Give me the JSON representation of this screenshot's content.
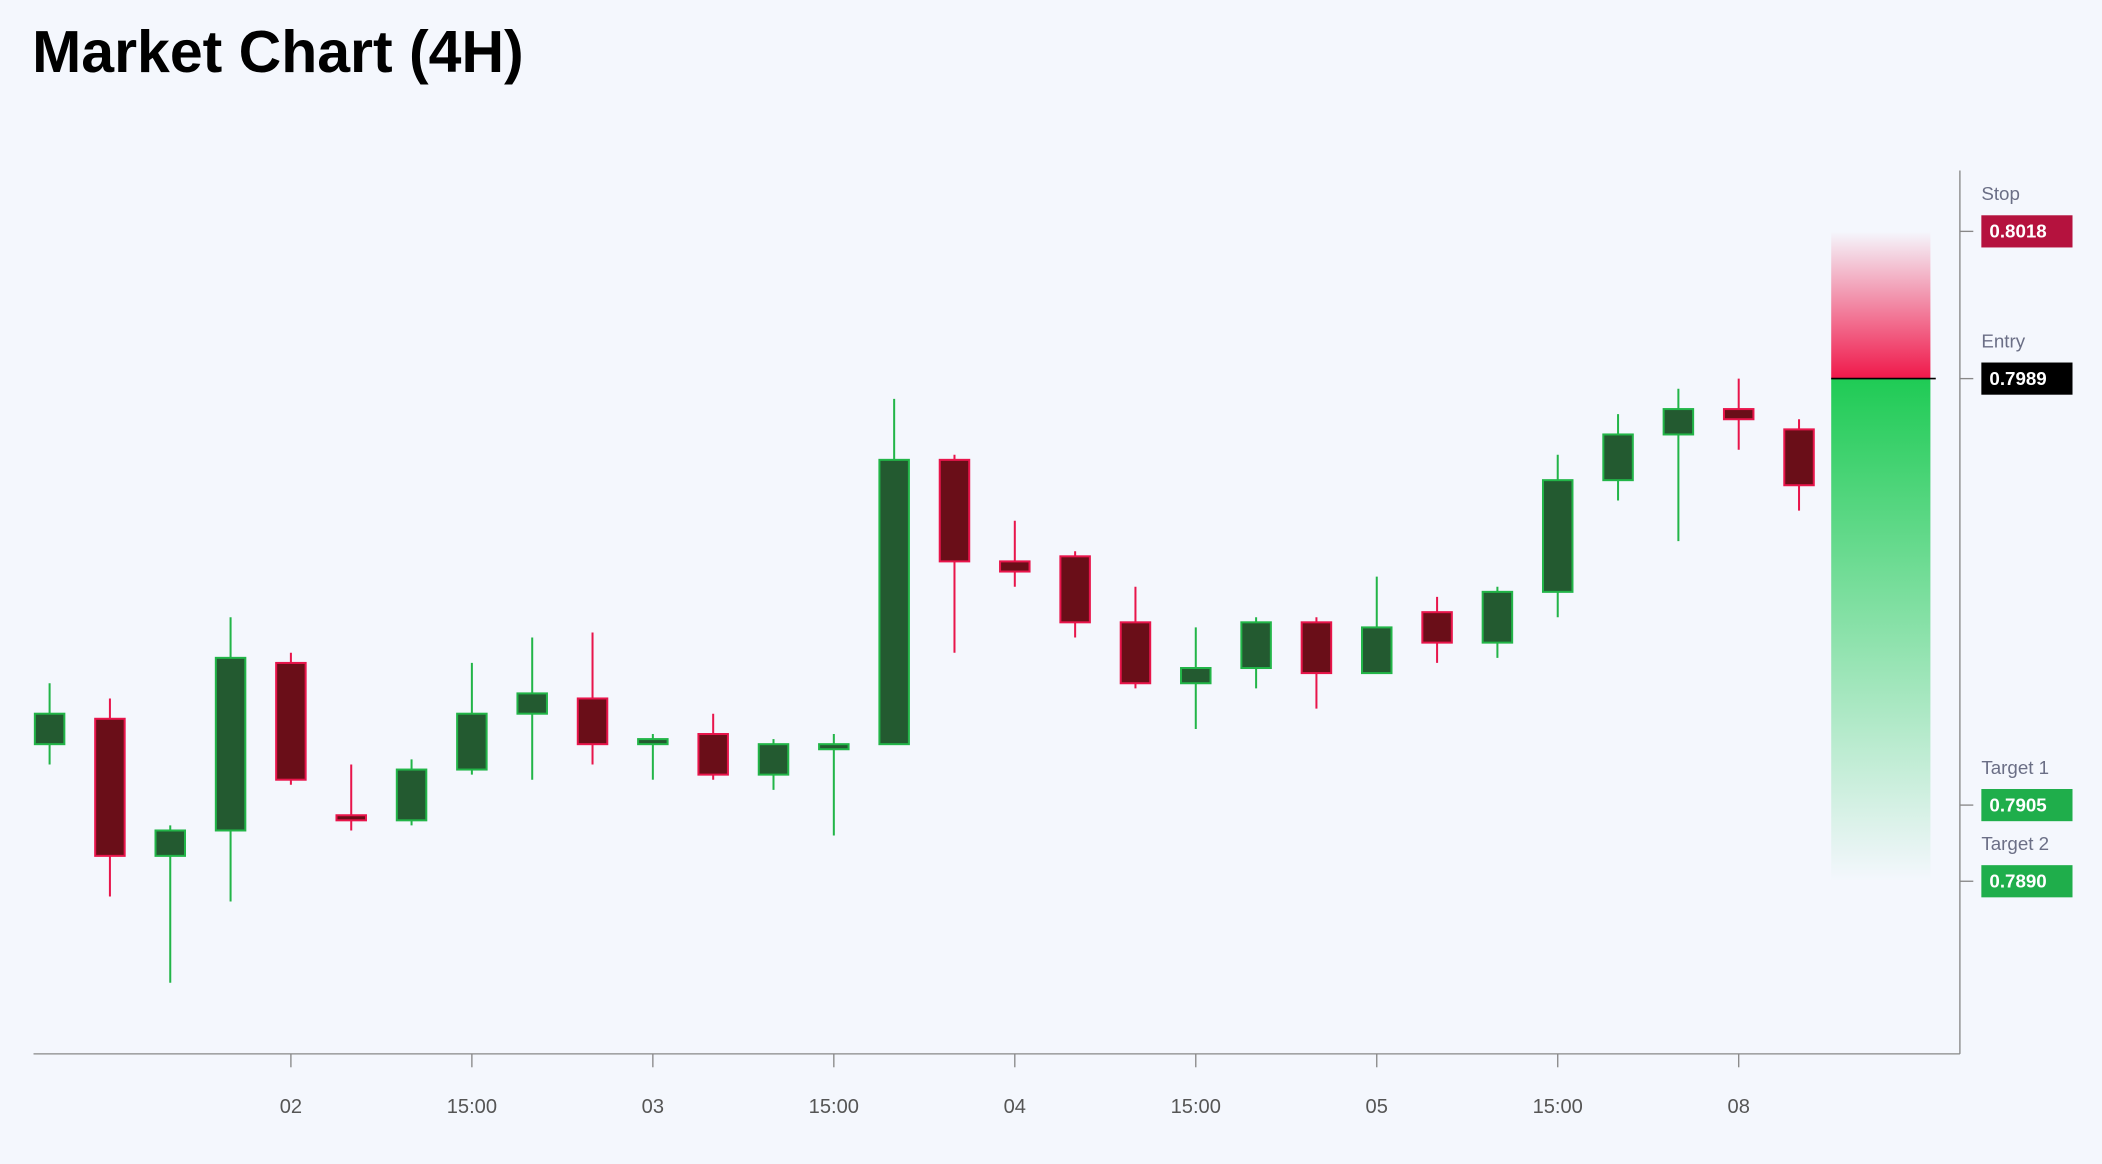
{
  "chart_data": {
    "type": "candlestick",
    "title": "Market Chart (4H)",
    "categories": [
      null,
      null,
      null,
      null,
      "02",
      null,
      null,
      "15:00",
      null,
      null,
      "03",
      null,
      null,
      "15:00",
      null,
      null,
      "04",
      null,
      null,
      "15:00",
      null,
      null,
      "05",
      null,
      null,
      "15:00",
      null,
      null,
      "08",
      null
    ],
    "open": [
      0.7917,
      0.7922,
      0.7895,
      0.79,
      0.7933,
      0.7903,
      0.7902,
      0.7912,
      0.7923,
      0.7926,
      0.7917,
      0.7919,
      0.7911,
      0.7916,
      0.7917,
      0.7973,
      0.7953,
      0.7954,
      0.7941,
      0.7929,
      0.7932,
      0.7941,
      0.7931,
      0.7943,
      0.7937,
      0.7947,
      0.7969,
      0.7978,
      0.7983,
      0.7979
    ],
    "high": [
      0.7929,
      0.7926,
      0.7901,
      0.7942,
      0.7935,
      0.7913,
      0.7914,
      0.7933,
      0.7938,
      0.7939,
      0.7919,
      0.7923,
      0.7918,
      0.7919,
      0.7985,
      0.7974,
      0.7961,
      0.7955,
      0.7948,
      0.794,
      0.7942,
      0.7942,
      0.795,
      0.7946,
      0.7948,
      0.7974,
      0.7982,
      0.7987,
      0.7989,
      0.7981
    ],
    "low": [
      0.7913,
      0.7887,
      0.787,
      0.7886,
      0.7909,
      0.79,
      0.7901,
      0.7911,
      0.791,
      0.7913,
      0.791,
      0.791,
      0.7908,
      0.7899,
      0.7917,
      0.7935,
      0.7948,
      0.7938,
      0.7928,
      0.792,
      0.7928,
      0.7924,
      0.7931,
      0.7933,
      0.7934,
      0.7942,
      0.7965,
      0.7957,
      0.7975,
      0.7963
    ],
    "close": [
      0.7923,
      0.7895,
      0.79,
      0.7934,
      0.791,
      0.7902,
      0.7912,
      0.7923,
      0.7927,
      0.7917,
      0.7918,
      0.7911,
      0.7917,
      0.7917,
      0.7973,
      0.7953,
      0.7951,
      0.7941,
      0.7929,
      0.7932,
      0.7941,
      0.7931,
      0.794,
      0.7937,
      0.7947,
      0.7969,
      0.7978,
      0.7983,
      0.7981,
      0.7968
    ],
    "up_color": {
      "fill": "#235a30",
      "stroke": "#22b548"
    },
    "down_color": {
      "fill": "#6a0e18",
      "stroke": "#e8154b"
    },
    "ylim": [
      0.7856,
      0.803
    ],
    "levels": {
      "names": [
        "Stop",
        "Entry",
        "Target 1",
        "Target 2"
      ],
      "values": [
        0.8018,
        0.7989,
        0.7905,
        0.789
      ],
      "value_labels": [
        "0.8018",
        "0.7989",
        "0.7905",
        "0.7890"
      ],
      "colors": [
        "#b5123e",
        "#000000",
        "#1fae4b",
        "#1fae4b"
      ]
    }
  }
}
